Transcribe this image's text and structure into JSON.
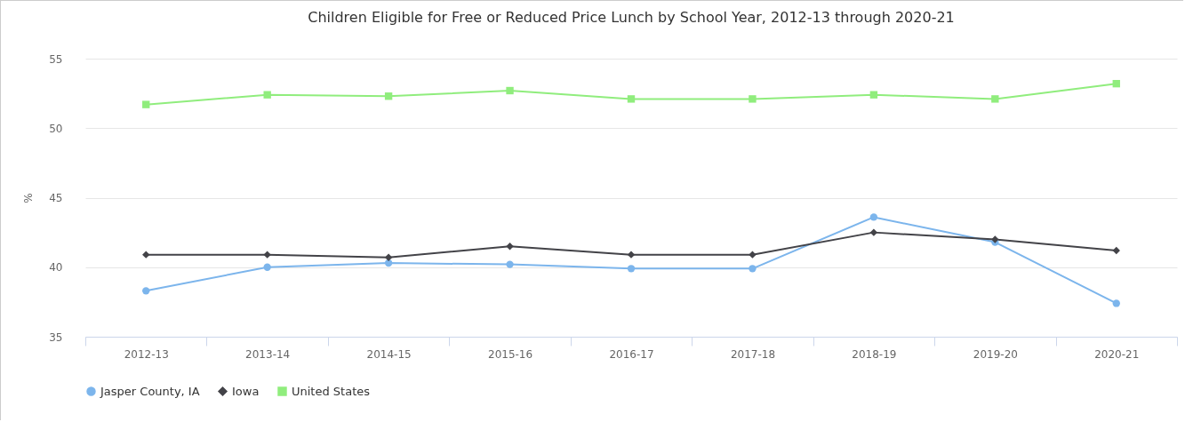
{
  "chart_data": {
    "type": "line",
    "title": "Children Eligible for Free or Reduced Price Lunch by School Year, 2012-13 through 2020-21",
    "ylabel": "%",
    "categories": [
      "2012-13",
      "2013-14",
      "2014-15",
      "2015-16",
      "2016-17",
      "2017-18",
      "2018-19",
      "2019-20",
      "2020-21"
    ],
    "series": [
      {
        "name": "Jasper County, IA",
        "color": "#7cb5ec",
        "marker": "circle",
        "values": [
          38.3,
          40.0,
          40.3,
          40.2,
          39.9,
          39.9,
          43.6,
          41.8,
          37.4
        ]
      },
      {
        "name": "Iowa",
        "color": "#434348",
        "marker": "diamond",
        "values": [
          40.9,
          40.9,
          40.7,
          41.5,
          40.9,
          40.9,
          42.5,
          42.0,
          41.2
        ]
      },
      {
        "name": "United States",
        "color": "#90ed7d",
        "marker": "square",
        "values": [
          51.7,
          52.4,
          52.3,
          52.7,
          52.1,
          52.1,
          52.4,
          52.1,
          53.2
        ]
      }
    ],
    "ylim": [
      35,
      55
    ],
    "yticks": [
      35,
      40,
      45,
      50,
      55
    ],
    "grid": "y",
    "legend": "bottom"
  }
}
